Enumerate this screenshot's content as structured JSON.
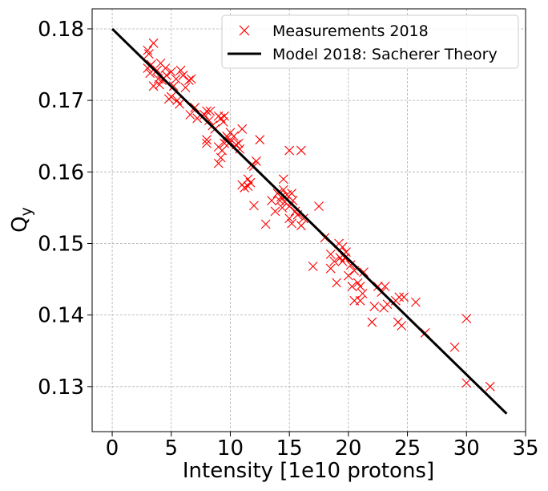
{
  "chart_data": {
    "type": "scatter",
    "title": "",
    "xlabel": "Intensity [1e10 protons]",
    "ylabel_main": "Q",
    "ylabel_sub": "y",
    "xlim": [
      -1.7,
      35.0
    ],
    "ylim": [
      0.1237,
      0.1828
    ],
    "x_ticks": [
      0,
      5,
      10,
      15,
      20,
      25,
      30,
      35
    ],
    "x_tick_labels": [
      "0",
      "5",
      "10",
      "15",
      "20",
      "25",
      "30",
      "35"
    ],
    "y_ticks": [
      0.13,
      0.14,
      0.15,
      0.16,
      0.17,
      0.18
    ],
    "y_tick_labels": [
      "0.13",
      "0.14",
      "0.15",
      "0.16",
      "0.17",
      "0.18"
    ],
    "grid": true,
    "legend_position": "top-right",
    "colors": {
      "measurements": "#ff0000",
      "model": "#000000"
    },
    "series": [
      {
        "name": "Measurements 2018",
        "kind": "scatter",
        "marker": "x",
        "points": [
          [
            3.0,
            0.177
          ],
          [
            3.1,
            0.1765
          ],
          [
            3.0,
            0.1745
          ],
          [
            3.2,
            0.1738
          ],
          [
            3.5,
            0.178
          ],
          [
            3.3,
            0.175
          ],
          [
            3.8,
            0.1742
          ],
          [
            3.9,
            0.173
          ],
          [
            3.5,
            0.172
          ],
          [
            4.0,
            0.1722
          ],
          [
            4.1,
            0.1752
          ],
          [
            4.2,
            0.1728
          ],
          [
            4.5,
            0.1745
          ],
          [
            4.6,
            0.1735
          ],
          [
            4.8,
            0.1702
          ],
          [
            5.0,
            0.174
          ],
          [
            5.2,
            0.172
          ],
          [
            5.4,
            0.173
          ],
          [
            5.5,
            0.17
          ],
          [
            5.7,
            0.1695
          ],
          [
            5.0,
            0.1705
          ],
          [
            5.8,
            0.1742
          ],
          [
            6.0,
            0.1735
          ],
          [
            6.2,
            0.1718
          ],
          [
            6.5,
            0.1728
          ],
          [
            6.7,
            0.173
          ],
          [
            6.6,
            0.168
          ],
          [
            7.0,
            0.169
          ],
          [
            7.2,
            0.1675
          ],
          [
            7.8,
            0.168
          ],
          [
            8.0,
            0.1685
          ],
          [
            8.2,
            0.1672
          ],
          [
            8.3,
            0.1685
          ],
          [
            8.5,
            0.1665
          ],
          [
            8.7,
            0.166
          ],
          [
            8.0,
            0.1645
          ],
          [
            8.0,
            0.164
          ],
          [
            9.0,
            0.1678
          ],
          [
            9.2,
            0.1675
          ],
          [
            9.4,
            0.167
          ],
          [
            9.5,
            0.1678
          ],
          [
            9.0,
            0.1635
          ],
          [
            9.2,
            0.162
          ],
          [
            9.0,
            0.1612
          ],
          [
            9.3,
            0.163
          ],
          [
            9.5,
            0.164
          ],
          [
            9.7,
            0.165
          ],
          [
            9.8,
            0.1648
          ],
          [
            10.0,
            0.1655
          ],
          [
            10.0,
            0.1642
          ],
          [
            10.3,
            0.165
          ],
          [
            10.5,
            0.1638
          ],
          [
            10.7,
            0.164
          ],
          [
            11.0,
            0.166
          ],
          [
            10.8,
            0.1632
          ],
          [
            11.0,
            0.1582
          ],
          [
            11.2,
            0.1578
          ],
          [
            11.5,
            0.159
          ],
          [
            11.7,
            0.1585
          ],
          [
            11.8,
            0.161
          ],
          [
            12.0,
            0.1608
          ],
          [
            12.2,
            0.1615
          ],
          [
            12.0,
            0.1553
          ],
          [
            11.5,
            0.158
          ],
          [
            12.5,
            0.1645
          ],
          [
            13.0,
            0.1527
          ],
          [
            13.5,
            0.156
          ],
          [
            13.8,
            0.1545
          ],
          [
            14.0,
            0.157
          ],
          [
            14.2,
            0.156
          ],
          [
            14.3,
            0.1565
          ],
          [
            14.5,
            0.159
          ],
          [
            14.5,
            0.1575
          ],
          [
            14.4,
            0.155
          ],
          [
            14.6,
            0.1558
          ],
          [
            14.8,
            0.1568
          ],
          [
            15.0,
            0.1552
          ],
          [
            15.0,
            0.163
          ],
          [
            15.2,
            0.157
          ],
          [
            15.3,
            0.156
          ],
          [
            15.0,
            0.1535
          ],
          [
            15.2,
            0.1528
          ],
          [
            15.5,
            0.1545
          ],
          [
            15.7,
            0.154
          ],
          [
            16.0,
            0.163
          ],
          [
            16.0,
            0.1525
          ],
          [
            16.2,
            0.1535
          ],
          [
            17.0,
            0.1468
          ],
          [
            17.5,
            0.1552
          ],
          [
            18.0,
            0.1508
          ],
          [
            18.5,
            0.1485
          ],
          [
            18.5,
            0.1465
          ],
          [
            18.8,
            0.1475
          ],
          [
            19.0,
            0.1445
          ],
          [
            19.2,
            0.15
          ],
          [
            19.3,
            0.148
          ],
          [
            19.5,
            0.1475
          ],
          [
            19.5,
            0.1495
          ],
          [
            19.7,
            0.148
          ],
          [
            19.8,
            0.1488
          ],
          [
            20.0,
            0.1455
          ],
          [
            20.2,
            0.147
          ],
          [
            20.3,
            0.144
          ],
          [
            20.5,
            0.142
          ],
          [
            20.5,
            0.1462
          ],
          [
            20.8,
            0.1445
          ],
          [
            21.0,
            0.144
          ],
          [
            21.0,
            0.142
          ],
          [
            21.2,
            0.143
          ],
          [
            21.3,
            0.146
          ],
          [
            22.0,
            0.139
          ],
          [
            22.2,
            0.1412
          ],
          [
            22.5,
            0.144
          ],
          [
            22.8,
            0.1432
          ],
          [
            23.0,
            0.141
          ],
          [
            23.1,
            0.144
          ],
          [
            23.3,
            0.1415
          ],
          [
            24.0,
            0.142
          ],
          [
            24.2,
            0.139
          ],
          [
            24.3,
            0.1425
          ],
          [
            24.5,
            0.1385
          ],
          [
            24.7,
            0.1425
          ],
          [
            25.7,
            0.1418
          ],
          [
            26.5,
            0.1375
          ],
          [
            29.0,
            0.1355
          ],
          [
            30.0,
            0.1395
          ],
          [
            30.0,
            0.1305
          ],
          [
            32.0,
            0.13
          ]
        ]
      },
      {
        "name": "Model 2018: Sacherer Theory",
        "kind": "line",
        "x": [
          0,
          33.4
        ],
        "y": [
          0.18,
          0.1262
        ]
      }
    ]
  }
}
